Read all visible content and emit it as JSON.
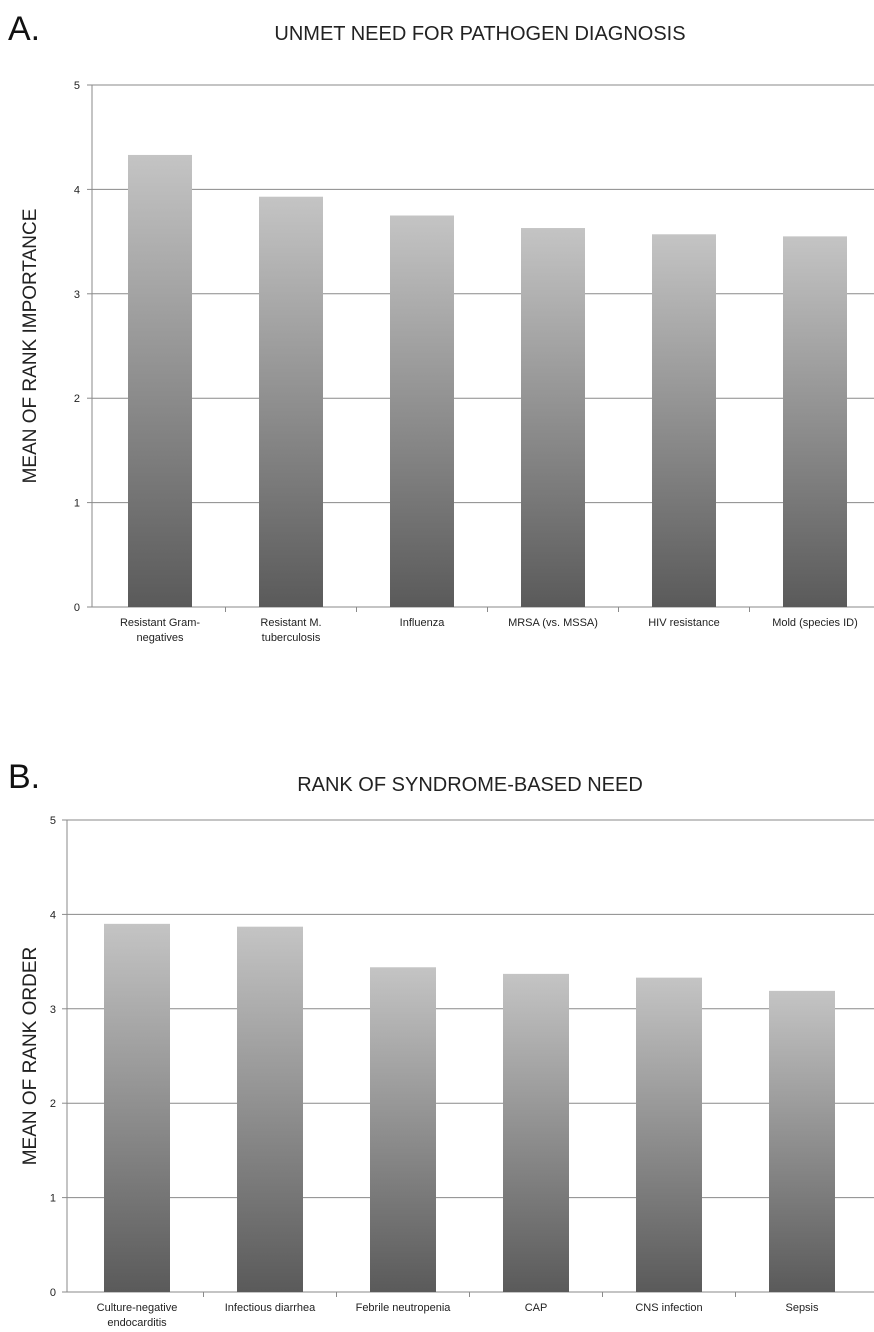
{
  "chart_data": [
    {
      "type": "bar",
      "panel_letter": "A.",
      "title": "UNMET NEED FOR PATHOGEN DIAGNOSIS",
      "xlabel": "",
      "ylabel": "MEAN OF RANK IMPORTANCE",
      "ylim": [
        0,
        5
      ],
      "yticks": [
        "0",
        "1",
        "2",
        "3",
        "4",
        "5"
      ],
      "grid": true,
      "legend": "none",
      "categories": [
        [
          "Resistant Gram-",
          "negatives"
        ],
        [
          "Resistant M.",
          "tuberculosis"
        ],
        [
          "Influenza"
        ],
        [
          "MRSA (vs. MSSA)"
        ],
        [
          "HIV resistance"
        ],
        [
          "Mold (species ID)"
        ]
      ],
      "values": [
        4.33,
        3.93,
        3.75,
        3.63,
        3.57,
        3.55
      ],
      "bar_gradient": [
        "#c4c4c4",
        "#5a5a5a"
      ]
    },
    {
      "type": "bar",
      "panel_letter": "B.",
      "title": "RANK OF SYNDROME-BASED NEED",
      "xlabel": "",
      "ylabel": "MEAN OF RANK ORDER",
      "ylim": [
        0,
        5
      ],
      "yticks": [
        "0",
        "1",
        "2",
        "3",
        "4",
        "5"
      ],
      "grid": true,
      "legend": "none",
      "categories": [
        [
          "Culture-negative",
          "endocarditis"
        ],
        [
          "Infectious diarrhea"
        ],
        [
          "Febrile neutropenia"
        ],
        [
          "CAP"
        ],
        [
          "CNS infection"
        ],
        [
          "Sepsis"
        ]
      ],
      "values": [
        3.9,
        3.87,
        3.44,
        3.37,
        3.33,
        3.19
      ],
      "bar_gradient": [
        "#c4c4c4",
        "#5a5a5a"
      ]
    }
  ]
}
